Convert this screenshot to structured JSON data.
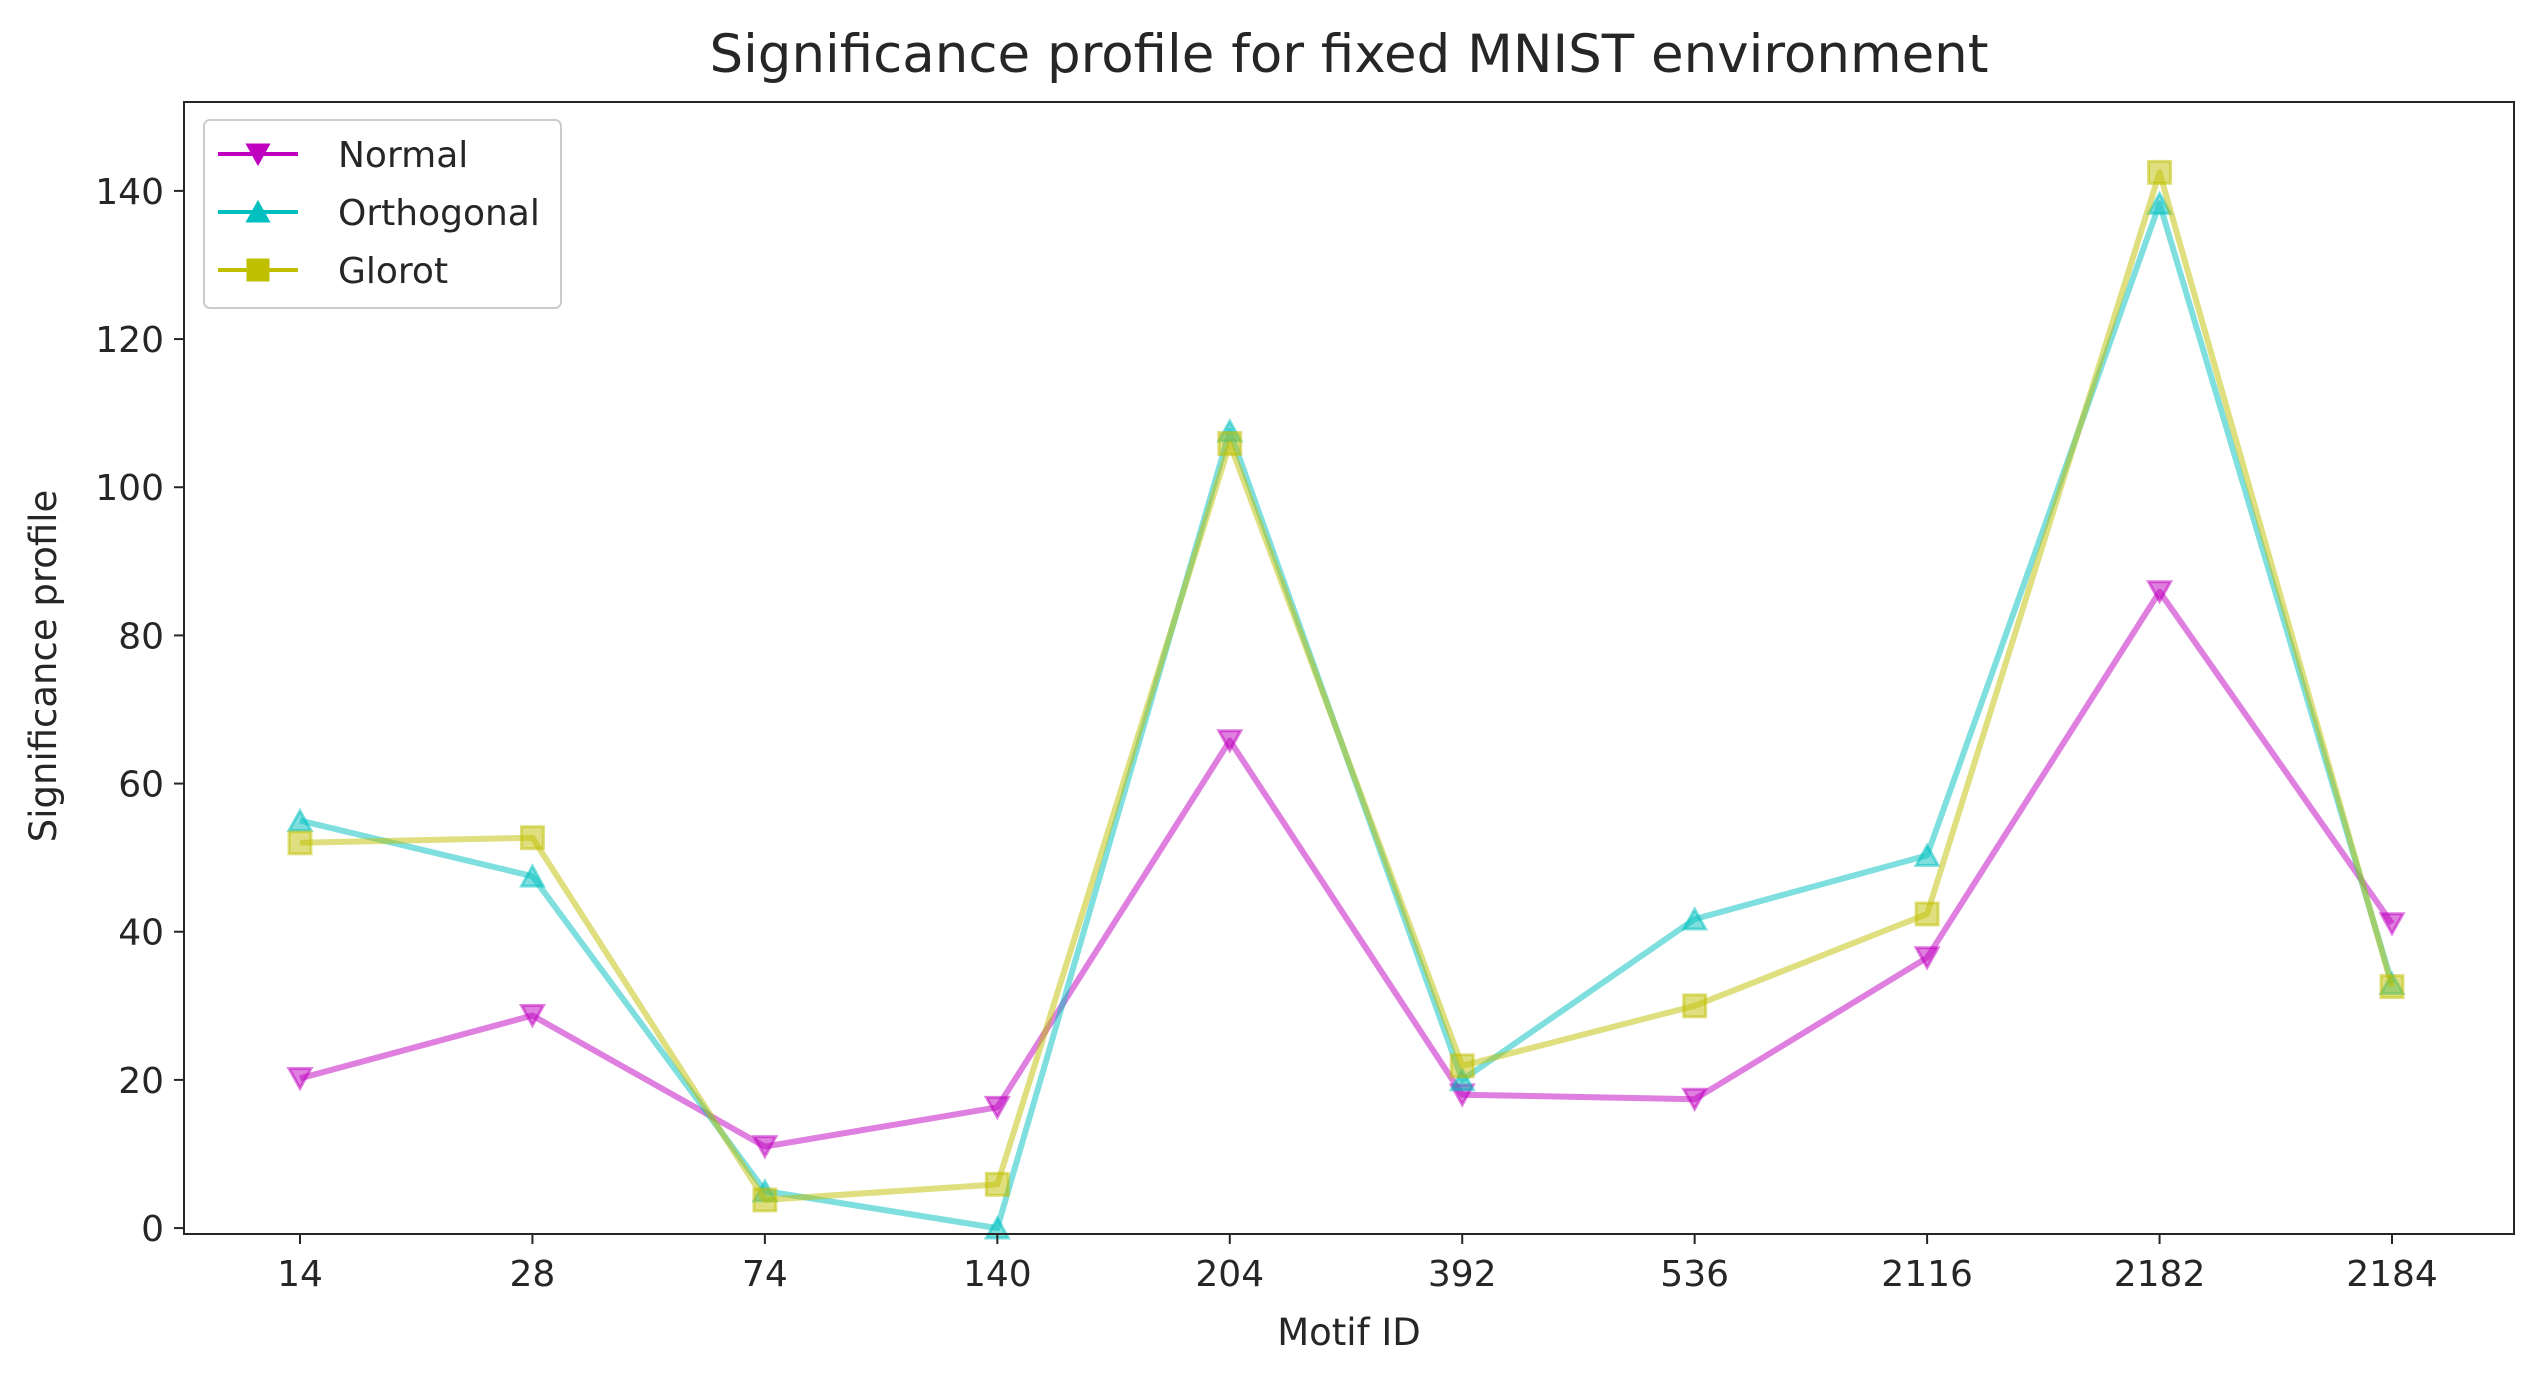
{
  "chart_data": {
    "type": "line",
    "title": "Significance profile for fixed MNIST environment",
    "xlabel": "Motif ID",
    "ylabel": "Significance profile",
    "categories": [
      "14",
      "28",
      "74",
      "140",
      "204",
      "392",
      "536",
      "2116",
      "2182",
      "2184"
    ],
    "ylim": [
      -0.8,
      152
    ],
    "yticks": [
      0,
      20,
      40,
      60,
      80,
      100,
      120,
      140
    ],
    "grid": false,
    "legend_position": "top-left",
    "series": [
      {
        "name": "Normal",
        "marker": "triangle-down",
        "color": "#bf00bf",
        "values": [
          20.2,
          28.7,
          11.0,
          16.3,
          65.8,
          18.0,
          17.4,
          36.5,
          85.9,
          41.1
        ]
      },
      {
        "name": "Orthogonal",
        "marker": "triangle-up",
        "color": "#00bfbf",
        "values": [
          55.0,
          47.5,
          5.0,
          0.0,
          107.6,
          20.0,
          41.7,
          50.3,
          138.3,
          33.0
        ]
      },
      {
        "name": "Glorot",
        "marker": "square",
        "color": "#bfbf00",
        "values": [
          52.0,
          52.7,
          3.8,
          5.9,
          105.9,
          21.9,
          30.0,
          42.4,
          142.5,
          32.6
        ]
      }
    ]
  }
}
